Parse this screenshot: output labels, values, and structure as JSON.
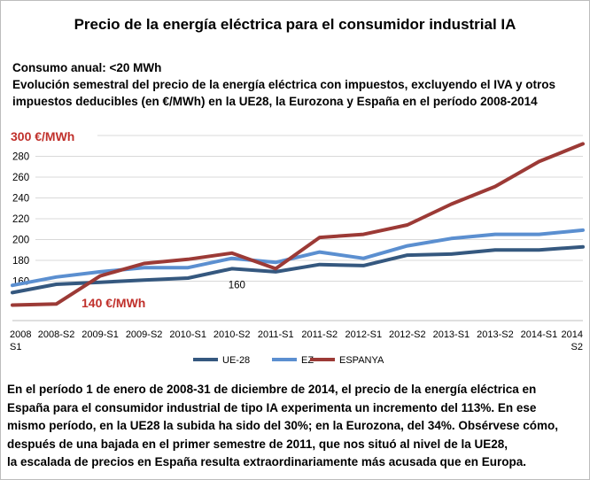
{
  "title": "Precio de la energía eléctrica para el consumidor industrial IA",
  "subtitle": {
    "line1": "Consumo anual: <20 MWh",
    "line2": "Evolución semestral del precio de la energía eléctrica con impuestos, excluyendo el IVA y otros",
    "line3": "impuestos deducibles (en €/MWh) en la UE28, la Eurozona y España en el período 2008-2014"
  },
  "chart_data": {
    "type": "line",
    "title": "",
    "xlabel": "",
    "ylabel": "",
    "ylim": [
      140,
      300
    ],
    "yticks": [
      160,
      180,
      200,
      220,
      240,
      260,
      280
    ],
    "ytick_top_label": "300 €/MWh",
    "ytick_bottom_label": "140 €/MWh",
    "categories": [
      [
        "2008",
        "S1"
      ],
      [
        "2008-S2"
      ],
      [
        "2009-S1"
      ],
      [
        "2009-S2"
      ],
      [
        "2010-S1"
      ],
      [
        "2010-S2"
      ],
      [
        "2011-S1"
      ],
      [
        "2011-S2"
      ],
      [
        "2012-S1"
      ],
      [
        "2012-S2"
      ],
      [
        "2013-S1"
      ],
      [
        "2013-S2"
      ],
      [
        "2014-S1"
      ],
      [
        "2014",
        "S2"
      ]
    ],
    "series": [
      {
        "name": "UE-28",
        "color": "#35587f",
        "values": [
          149,
          157,
          159,
          161,
          163,
          172,
          169,
          176,
          175,
          185,
          186,
          190,
          190,
          193
        ]
      },
      {
        "name": "EZ",
        "color": "#5b8fd0",
        "values": [
          156,
          164,
          169,
          173,
          173,
          182,
          178,
          188,
          182,
          194,
          201,
          205,
          205,
          209
        ]
      },
      {
        "name": "ESPANYA",
        "color": "#9c3a36",
        "values": [
          137,
          138,
          165,
          177,
          181,
          187,
          172,
          202,
          205,
          214,
          234,
          251,
          275,
          292
        ]
      }
    ],
    "legend_position": "bottom",
    "annotation": "160"
  },
  "footer": {
    "line1": "En el período 1 de enero de 2008-31 de diciembre de 2014, el precio de la energía eléctrica en",
    "line2": "España para el consumidor industrial de tipo IA experimenta un incremento del 113%. En ese",
    "line3": "mismo período, en la UE28 la subida ha sido del 30%; en la Eurozona, del 34%. Obsérvese cómo,",
    "line4": "después de una bajada en el primer semestre de 2011, que nos situó al nivel de la UE28,",
    "line5": "la escalada de precios en España resulta extraordinariamente más acusada que en Europa."
  }
}
